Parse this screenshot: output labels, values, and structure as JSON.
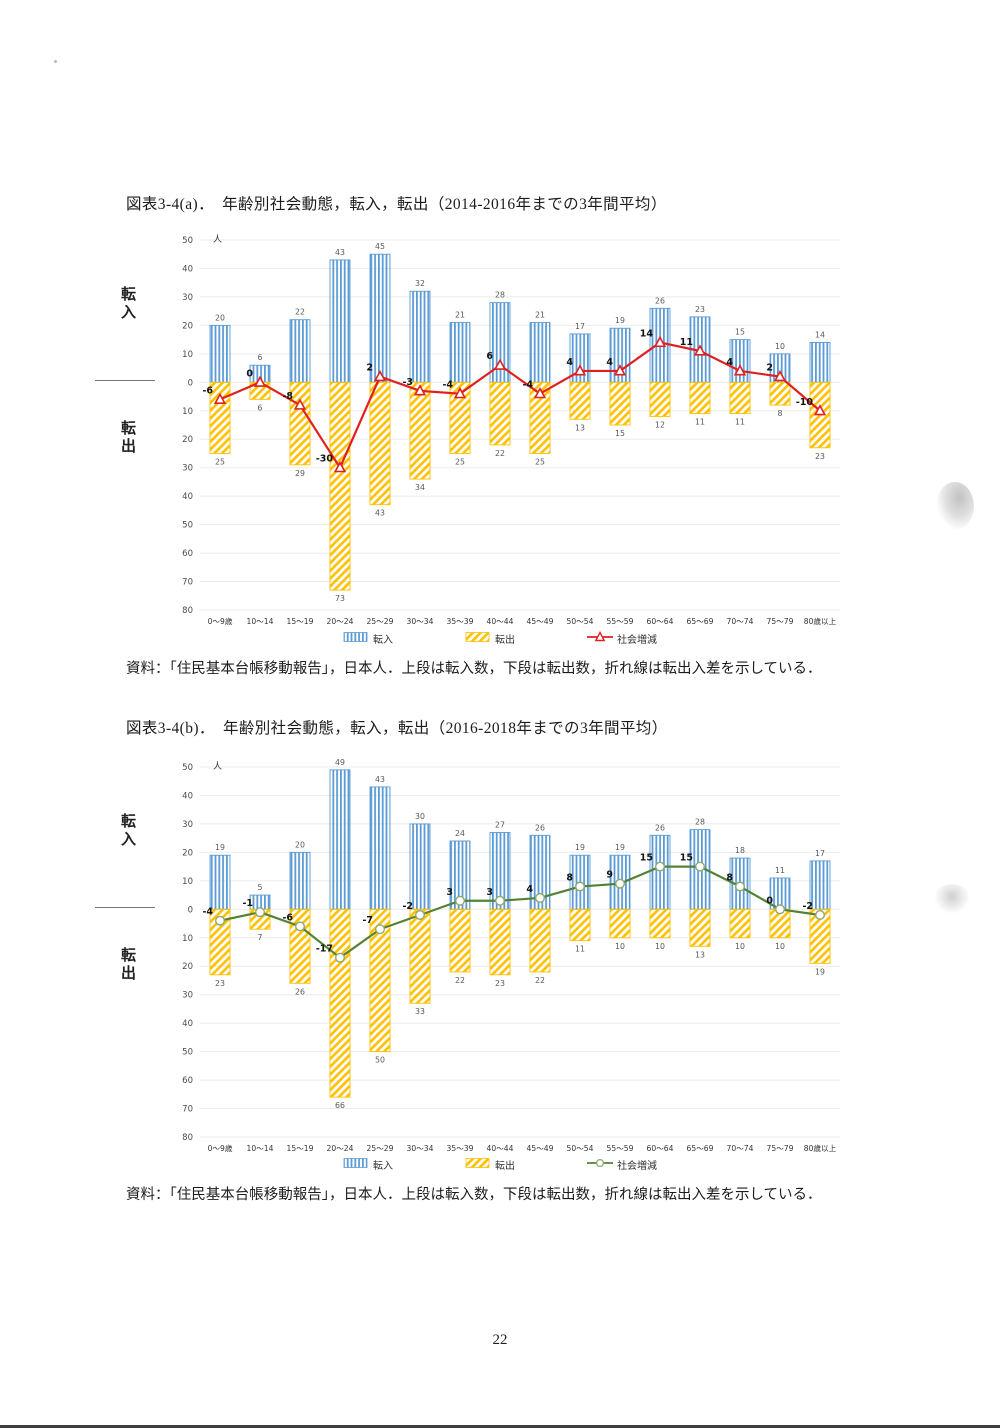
{
  "page_number": "22",
  "source_caption": "資料：「住民基本台帳移動報告」，日本人．上段は転入数，下段は転出数，折れ線は転出入差を示している．",
  "side_labels": {
    "top": "転入",
    "bottom": "転出"
  },
  "chart_data": [
    {
      "type": "bar",
      "title": "図表3-4(a)．　年齢別社会動態，転入，転出（2014-2016年までの3年間平均）",
      "unit_label": "人",
      "categories": [
        "0〜9歳",
        "10〜14",
        "15〜19",
        "20〜24",
        "25〜29",
        "30〜34",
        "35〜39",
        "40〜44",
        "45〜49",
        "50〜54",
        "55〜59",
        "60〜64",
        "65〜69",
        "70〜74",
        "75〜79",
        "80歳以上"
      ],
      "series": [
        {
          "name": "転入",
          "kind": "bar",
          "direction": "up",
          "color": "#5B9BD5",
          "pattern": "vertical-stripes",
          "values": [
            20,
            6,
            22,
            43,
            45,
            32,
            21,
            28,
            21,
            17,
            19,
            26,
            23,
            15,
            10,
            14
          ]
        },
        {
          "name": "転出",
          "kind": "bar",
          "direction": "down",
          "color": "#FFC000",
          "pattern": "diagonal-stripes",
          "values": [
            25,
            6,
            29,
            73,
            43,
            34,
            25,
            22,
            25,
            13,
            15,
            12,
            11,
            11,
            8,
            23
          ]
        },
        {
          "name": "社会増減",
          "kind": "line",
          "marker": "triangle",
          "color": "#E02020",
          "marker_stroke": "#E02020",
          "values": [
            -6,
            0,
            -8,
            -30,
            2,
            -3,
            -4,
            6,
            -4,
            4,
            4,
            14,
            11,
            4,
            2,
            -10
          ]
        }
      ],
      "ylim": [
        -80,
        50
      ],
      "ytick_step": 10,
      "ytick_labels_absolute": true,
      "grid": true,
      "legend_position": "bottom"
    },
    {
      "type": "bar",
      "title": "図表3-4(b)．　年齢別社会動態，転入，転出（2016-2018年までの3年間平均）",
      "unit_label": "人",
      "categories": [
        "0〜9歳",
        "10〜14",
        "15〜19",
        "20〜24",
        "25〜29",
        "30〜34",
        "35〜39",
        "40〜44",
        "45〜49",
        "50〜54",
        "55〜59",
        "60〜64",
        "65〜69",
        "70〜74",
        "75〜79",
        "80歳以上"
      ],
      "series": [
        {
          "name": "転入",
          "kind": "bar",
          "direction": "up",
          "color": "#5B9BD5",
          "pattern": "vertical-stripes",
          "values": [
            19,
            5,
            20,
            49,
            43,
            30,
            24,
            27,
            26,
            19,
            19,
            26,
            28,
            18,
            11,
            17
          ]
        },
        {
          "name": "転出",
          "kind": "bar",
          "direction": "down",
          "color": "#FFC000",
          "pattern": "diagonal-stripes",
          "values": [
            23,
            7,
            26,
            66,
            50,
            33,
            22,
            23,
            22,
            11,
            10,
            10,
            13,
            10,
            10,
            19
          ]
        },
        {
          "name": "社会増減",
          "kind": "line",
          "marker": "circle",
          "color": "#548235",
          "marker_stroke": "#8FA873",
          "values": [
            -4,
            -1,
            -6,
            -17,
            -7,
            -2,
            3,
            3,
            4,
            8,
            9,
            15,
            15,
            8,
            0,
            -2
          ]
        }
      ],
      "ylim": [
        -80,
        50
      ],
      "ytick_step": 10,
      "ytick_labels_absolute": true,
      "grid": true,
      "legend_position": "bottom"
    }
  ]
}
